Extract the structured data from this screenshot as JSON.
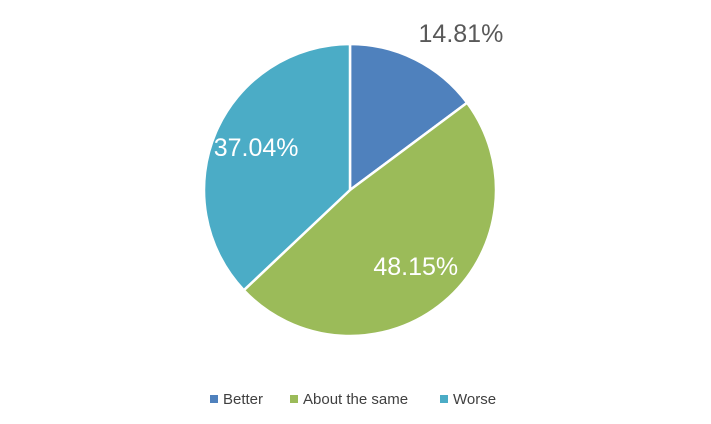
{
  "chart_data": {
    "type": "pie",
    "categories": [
      "Better",
      "About the same",
      "Worse"
    ],
    "values": [
      14.81,
      48.15,
      37.04
    ],
    "value_labels": [
      "14.81%",
      "48.15%",
      "37.04%"
    ],
    "colors": [
      "#4f81bd",
      "#9bbb59",
      "#4bacc6"
    ],
    "legend": "bottom"
  }
}
